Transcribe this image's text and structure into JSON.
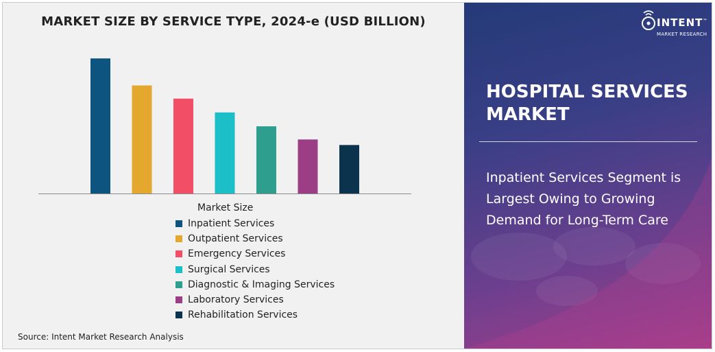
{
  "chart_data": {
    "type": "bar",
    "title": "MARKET SIZE BY SERVICE TYPE, 2024-e (USD BILLION)",
    "categories": [
      "Inpatient Services",
      "Outpatient Services",
      "Emergency Services",
      "Surgical Services",
      "Diagnostic & Imaging Services",
      "Laboratory Services",
      "Rehabilitation Services"
    ],
    "series": [
      {
        "name": "Market Size",
        "values": [
          195,
          156,
          137,
          117,
          97,
          78,
          70
        ]
      }
    ],
    "colors": [
      "#0e5480",
      "#e5a82e",
      "#f24e66",
      "#1cbfc7",
      "#2e9e8f",
      "#9b3e86",
      "#0b334d"
    ],
    "ylim": [
      0,
      210
    ],
    "legend_title": "Market Size",
    "legend_position": "bottom",
    "grid": false,
    "source": "Source: Intent Market Research Analysis"
  },
  "sidebar": {
    "market_title": "HOSPITAL SERVICES MARKET",
    "highlight": "Inpatient Services Segment is Largest Owing to Growing Demand for Long-Term Care",
    "logo_name": "INTENT",
    "logo_tm": "™",
    "logo_sub": "MARKET RESEARCH",
    "logo_icon": "signal-wave-icon"
  }
}
